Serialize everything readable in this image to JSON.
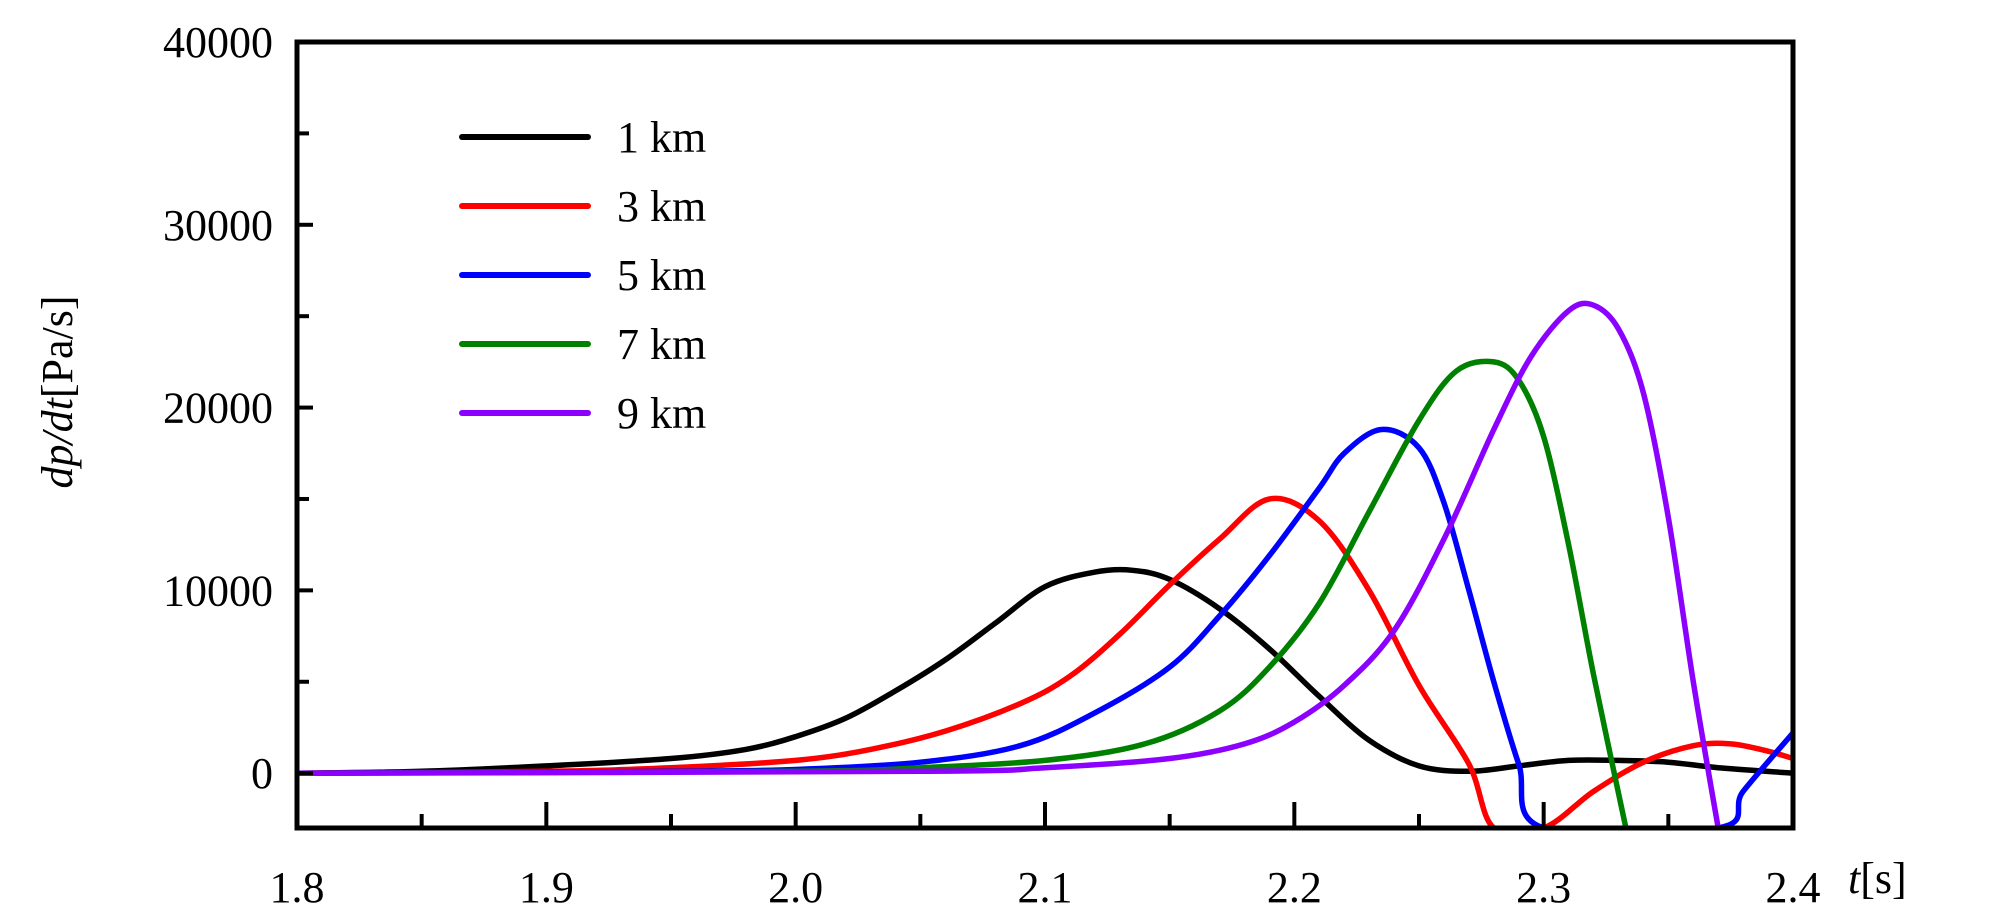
{
  "chart_data": {
    "type": "line",
    "xlabel_italic": "t",
    "xlabel_rest": "[s]",
    "ylabel_italic": "dp/dt",
    "ylabel_rest": "[Pa/s]",
    "xlim": [
      1.8,
      2.4
    ],
    "ylim": [
      -3000,
      40000
    ],
    "xticks": [
      1.8,
      1.9,
      2.0,
      2.1,
      2.2,
      2.3,
      2.4
    ],
    "xtick_labels": [
      "1.8",
      "1.9",
      "2.0",
      "2.1",
      "2.2",
      "2.3",
      "2.4"
    ],
    "yticks": [
      0,
      10000,
      20000,
      30000,
      40000
    ],
    "ytick_labels": [
      "0",
      "10000",
      "20000",
      "30000",
      "40000"
    ],
    "ytick_minor": [
      5000,
      15000,
      25000,
      35000
    ],
    "xtick_minor": [
      1.85,
      1.95,
      2.05,
      2.15,
      2.25,
      2.35
    ],
    "grid": false,
    "legend_position": "top-left",
    "series": [
      {
        "name": "1 km",
        "color": "#000000",
        "x": [
          1.8,
          1.85,
          1.9,
          1.95,
          1.98,
          2.0,
          2.02,
          2.04,
          2.06,
          2.08,
          2.1,
          2.12,
          2.135,
          2.15,
          2.17,
          2.19,
          2.21,
          2.23,
          2.25,
          2.27,
          2.29,
          2.31,
          2.33,
          2.35,
          2.37,
          2.4
        ],
        "y": [
          0,
          100,
          400,
          800,
          1300,
          2000,
          3000,
          4500,
          6200,
          8200,
          10200,
          11000,
          11100,
          10600,
          9000,
          6800,
          4200,
          1800,
          400,
          100,
          400,
          700,
          700,
          600,
          300,
          0
        ]
      },
      {
        "name": "3 km",
        "color": "#ff0000",
        "x": [
          1.8,
          1.9,
          1.95,
          2.0,
          2.03,
          2.06,
          2.09,
          2.11,
          2.13,
          2.15,
          2.17,
          2.19,
          2.21,
          2.23,
          2.25,
          2.27,
          2.28,
          2.3,
          2.32,
          2.34,
          2.36,
          2.375,
          2.39,
          2.4
        ],
        "y": [
          0,
          100,
          300,
          700,
          1300,
          2300,
          3800,
          5300,
          7600,
          10300,
          12800,
          15000,
          13800,
          10000,
          4800,
          500,
          -3000,
          -3000,
          -1000,
          600,
          1500,
          1600,
          1200,
          800
        ]
      },
      {
        "name": "5 km",
        "color": "#0000ff",
        "x": [
          1.8,
          1.95,
          2.0,
          2.05,
          2.09,
          2.12,
          2.15,
          2.17,
          2.19,
          2.21,
          2.22,
          2.235,
          2.25,
          2.26,
          2.27,
          2.28,
          2.29,
          2.3,
          2.37,
          2.38,
          2.4
        ],
        "y": [
          0,
          100,
          200,
          600,
          1500,
          3300,
          5800,
          8600,
          11900,
          15600,
          17500,
          18800,
          17800,
          14800,
          10000,
          5000,
          500,
          -3000,
          -3000,
          -1000,
          2200
        ]
      },
      {
        "name": "7 km",
        "color": "#008000",
        "x": [
          1.8,
          2.0,
          2.05,
          2.1,
          2.14,
          2.17,
          2.19,
          2.21,
          2.23,
          2.25,
          2.265,
          2.28,
          2.29,
          2.3,
          2.31,
          2.32,
          2.333
        ],
        "y": [
          0,
          100,
          300,
          700,
          1600,
          3400,
          5800,
          9300,
          14300,
          19300,
          22000,
          22500,
          21500,
          18400,
          12500,
          5400,
          -3000
        ]
      },
      {
        "name": "9 km",
        "color": "#8b00ff",
        "x": [
          1.8,
          2.05,
          2.1,
          2.15,
          2.18,
          2.2,
          2.22,
          2.24,
          2.26,
          2.28,
          2.295,
          2.31,
          2.32,
          2.33,
          2.34,
          2.35,
          2.36,
          2.37
        ],
        "y": [
          0,
          100,
          300,
          800,
          1600,
          2800,
          4800,
          7800,
          12800,
          18800,
          22800,
          25300,
          25600,
          24300,
          20800,
          14000,
          5000,
          -3000
        ]
      }
    ]
  }
}
